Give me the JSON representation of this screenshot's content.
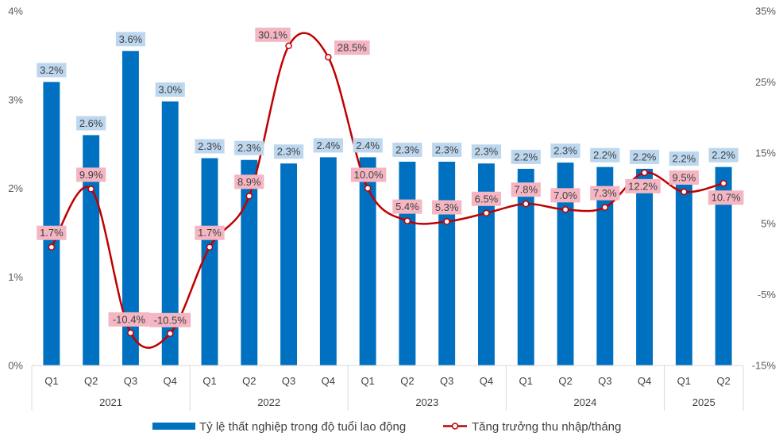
{
  "chart_data": {
    "type": "bar+line",
    "categories": [
      "Q1",
      "Q2",
      "Q3",
      "Q4",
      "Q1",
      "Q2",
      "Q3",
      "Q4",
      "Q1",
      "Q2",
      "Q3",
      "Q4",
      "Q1",
      "Q2",
      "Q3",
      "Q4",
      "Q1",
      "Q2"
    ],
    "years": [
      {
        "label": "2021",
        "quarters": 4
      },
      {
        "label": "2022",
        "quarters": 4
      },
      {
        "label": "2023",
        "quarters": 4
      },
      {
        "label": "2024",
        "quarters": 4
      },
      {
        "label": "2025",
        "quarters": 2
      }
    ],
    "series": [
      {
        "name": "Tỷ lệ thất nghiệp trong độ tuổi lao động",
        "type": "bar",
        "axis": "left",
        "color": "#0070C0",
        "values": [
          3.2,
          2.6,
          3.55,
          2.98,
          2.34,
          2.32,
          2.28,
          2.35,
          2.35,
          2.3,
          2.3,
          2.28,
          2.22,
          2.29,
          2.24,
          2.22,
          2.2,
          2.24
        ],
        "labels": [
          "3.2%",
          "2.6%",
          "3.6%",
          "3.0%",
          "2.3%",
          "2.3%",
          "2.3%",
          "2.4%",
          "2.4%",
          "2.3%",
          "2.3%",
          "2.3%",
          "2.2%",
          "2.3%",
          "2.2%",
          "2.2%",
          "2.2%",
          "2.2%"
        ],
        "label_bg": "#BDD7EE"
      },
      {
        "name": "Tăng trưởng thu nhập/tháng",
        "type": "line",
        "axis": "right",
        "color": "#C00000",
        "values": [
          1.7,
          9.9,
          -10.4,
          -10.5,
          1.7,
          8.9,
          30.1,
          28.5,
          10.0,
          5.4,
          5.3,
          6.5,
          7.8,
          7.0,
          7.3,
          12.2,
          9.5,
          10.7
        ],
        "labels": [
          "1.7%",
          "9.9%",
          "-10.4%",
          "-10.5%",
          "1.7%",
          "8.9%",
          "30.1%",
          "28.5%",
          "10.0%",
          "5.4%",
          "5.3%",
          "6.5%",
          "7.8%",
          "7.0%",
          "7.3%",
          "12.2%",
          "9.5%",
          "10.7%"
        ],
        "label_bg": "#F4B6C2"
      }
    ],
    "y_left": {
      "min": 0,
      "max": 4,
      "ticks": [
        0,
        1,
        2,
        3,
        4
      ],
      "tick_labels": [
        "0%",
        "1%",
        "2%",
        "3%",
        "4%"
      ]
    },
    "y_right": {
      "min": -15,
      "max": 35,
      "ticks": [
        -15,
        -5,
        5,
        15,
        25,
        35
      ],
      "tick_labels": [
        "-15%",
        "-5%",
        "5%",
        "15%",
        "25%",
        "35%"
      ]
    },
    "legend_position": "bottom",
    "grid": false
  }
}
